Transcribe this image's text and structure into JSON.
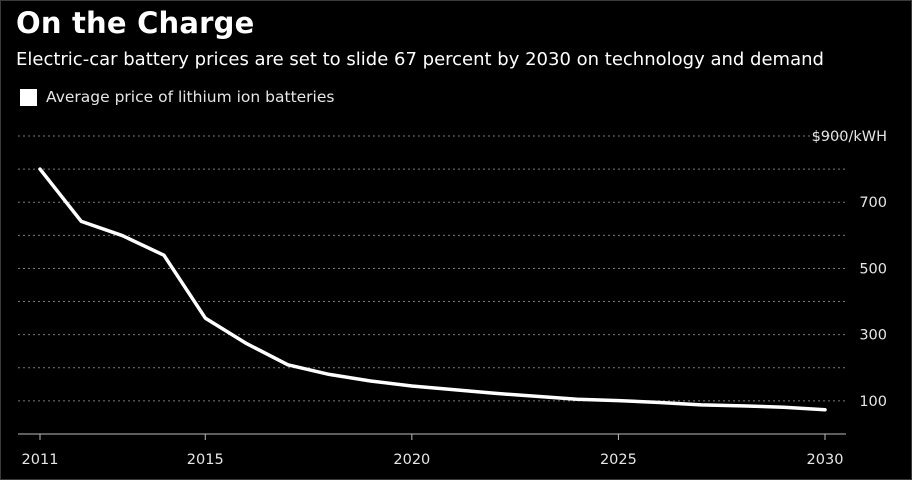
{
  "title": "On the Charge",
  "subtitle": "Electric-car battery prices are set to slide 67 percent by 2030 on technology and demand",
  "colors": {
    "background": "#000000",
    "line": "#ffffff",
    "grid": "#7a7a7a",
    "text": "#e6e6e6"
  },
  "chart_data": {
    "type": "line",
    "title": "On the Charge",
    "subtitle": "Electric-car battery prices are set to slide 67 percent by 2030 on technology and demand",
    "xlabel": "",
    "ylabel": "",
    "xlim": [
      2011,
      2030
    ],
    "ylim": [
      0,
      900
    ],
    "grid": true,
    "y_tick_values": [
      100,
      300,
      500,
      700,
      900
    ],
    "y_tick_labels": [
      "100",
      "300",
      "500",
      "700",
      "$900/kWH"
    ],
    "x_tick_values": [
      2011,
      2015,
      2020,
      2025,
      2030
    ],
    "x_tick_labels": [
      "2011",
      "2015",
      "2020",
      "2025",
      "2030"
    ],
    "legend_position": "top-left",
    "series": [
      {
        "name": "Average price of lithium ion batteries",
        "x": [
          2011,
          2012,
          2013,
          2014,
          2015,
          2016,
          2017,
          2018,
          2019,
          2020,
          2021,
          2022,
          2023,
          2024,
          2025,
          2026,
          2027,
          2028,
          2029,
          2030
        ],
        "values": [
          800,
          642,
          599,
          540,
          350,
          273,
          209,
          180,
          160,
          145,
          134,
          123,
          114,
          105,
          101,
          95,
          88,
          85,
          81,
          73
        ]
      }
    ]
  }
}
